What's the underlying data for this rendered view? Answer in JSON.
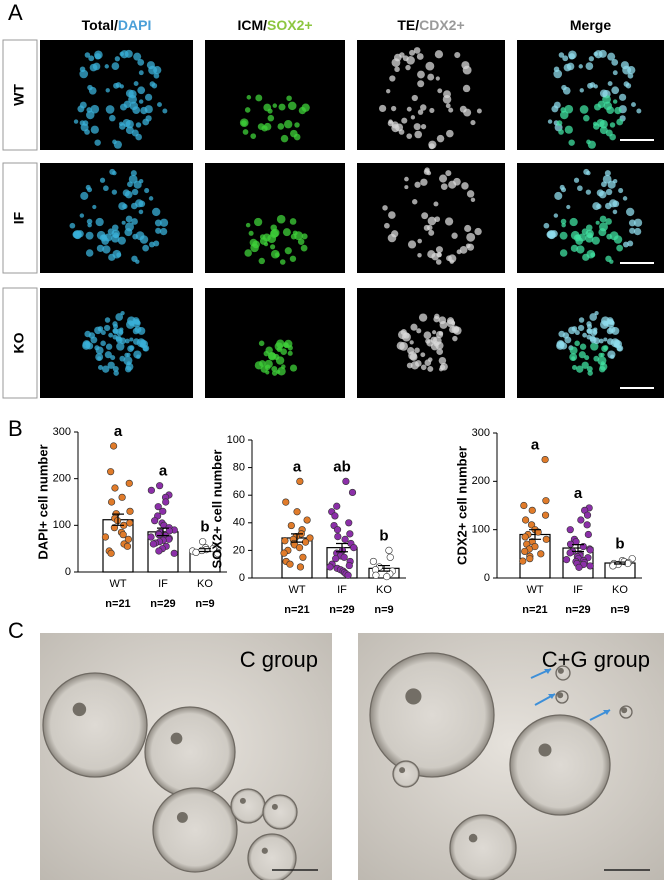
{
  "panel_labels": [
    "A",
    "B",
    "C"
  ],
  "panel_a": {
    "column_titles": [
      [
        {
          "text": "Total/",
          "color": "#000000"
        },
        {
          "text": "DAPI",
          "color": "#4a9fd8"
        }
      ],
      [
        {
          "text": "ICM/",
          "color": "#000000"
        },
        {
          "text": "SOX2+",
          "color": "#8cc63f"
        }
      ],
      [
        {
          "text": "TE/",
          "color": "#000000"
        },
        {
          "text": "CDX2+",
          "color": "#9a9a9a"
        }
      ],
      [
        {
          "text": "Merge",
          "color": "#000000"
        }
      ]
    ],
    "row_labels": [
      "WT",
      "IF",
      "KO"
    ]
  },
  "chart_data": [
    {
      "type": "bar",
      "ylabel": "DAPI+ cell number",
      "categories": [
        "WT",
        "IF",
        "KO"
      ],
      "values": [
        112,
        86,
        47
      ],
      "errors": [
        12,
        8,
        3
      ],
      "point_colors": [
        "#e07b2a",
        "#8b2fa8",
        "#ffffff"
      ],
      "points": [
        [
          270,
          215,
          190,
          180,
          160,
          150,
          130,
          125,
          115,
          110,
          105,
          100,
          95,
          85,
          80,
          75,
          70,
          60,
          55,
          45,
          40
        ],
        [
          185,
          175,
          165,
          160,
          150,
          140,
          130,
          120,
          110,
          105,
          100,
          95,
          90,
          88,
          85,
          82,
          80,
          78,
          75,
          72,
          70,
          68,
          65,
          62,
          60,
          55,
          50,
          45,
          40
        ],
        [
          65,
          55,
          52,
          50,
          48,
          46,
          45,
          42,
          40
        ]
      ],
      "letters": [
        "a",
        "a",
        "b"
      ],
      "n_labels": [
        "n=21",
        "n=29",
        "n=9"
      ],
      "ylim": [
        0,
        300
      ],
      "yticks": [
        0,
        100,
        200,
        300
      ]
    },
    {
      "type": "bar",
      "ylabel": "SOX2+ cell number",
      "categories": [
        "WT",
        "IF",
        "KO"
      ],
      "values": [
        29,
        22,
        7
      ],
      "errors": [
        3,
        3,
        2
      ],
      "point_colors": [
        "#e07b2a",
        "#8b2fa8",
        "#ffffff"
      ],
      "points": [
        [
          70,
          55,
          48,
          42,
          38,
          35,
          32,
          30,
          29,
          28,
          27,
          26,
          25,
          24,
          22,
          20,
          18,
          15,
          12,
          10,
          8
        ],
        [
          70,
          62,
          52,
          48,
          45,
          40,
          38,
          35,
          32,
          30,
          28,
          25,
          22,
          20,
          18,
          17,
          16,
          15,
          14,
          12,
          10,
          9,
          8,
          7,
          6,
          5,
          4,
          3,
          2
        ],
        [
          20,
          15,
          12,
          8,
          6,
          5,
          3,
          2,
          1
        ]
      ],
      "letters": [
        "a",
        "ab",
        "b"
      ],
      "n_labels": [
        "n=21",
        "n=29",
        "n=9"
      ],
      "ylim": [
        0,
        100
      ],
      "yticks": [
        0,
        20,
        40,
        60,
        80,
        100
      ]
    },
    {
      "type": "bar",
      "ylabel": "CDX2+ cell number",
      "categories": [
        "WT",
        "IF",
        "KO"
      ],
      "values": [
        90,
        62,
        31
      ],
      "errors": [
        10,
        7,
        2
      ],
      "point_colors": [
        "#e07b2a",
        "#8b2fa8",
        "#ffffff"
      ],
      "points": [
        [
          245,
          160,
          150,
          140,
          130,
          120,
          110,
          100,
          95,
          90,
          85,
          80,
          75,
          70,
          65,
          60,
          55,
          50,
          45,
          40,
          35
        ],
        [
          145,
          140,
          130,
          120,
          110,
          100,
          90,
          80,
          75,
          70,
          65,
          60,
          58,
          55,
          52,
          50,
          48,
          46,
          44,
          42,
          40,
          38,
          36,
          34,
          32,
          30,
          28,
          25,
          22
        ],
        [
          40,
          36,
          34,
          32,
          30,
          30,
          28,
          27,
          25
        ]
      ],
      "letters": [
        "a",
        "a",
        "b"
      ],
      "n_labels": [
        "n=21",
        "n=29",
        "n=9"
      ],
      "ylim": [
        0,
        300
      ],
      "yticks": [
        0,
        100,
        200,
        300
      ]
    }
  ],
  "panel_c": {
    "labels": [
      "C group",
      "C+G group"
    ]
  }
}
